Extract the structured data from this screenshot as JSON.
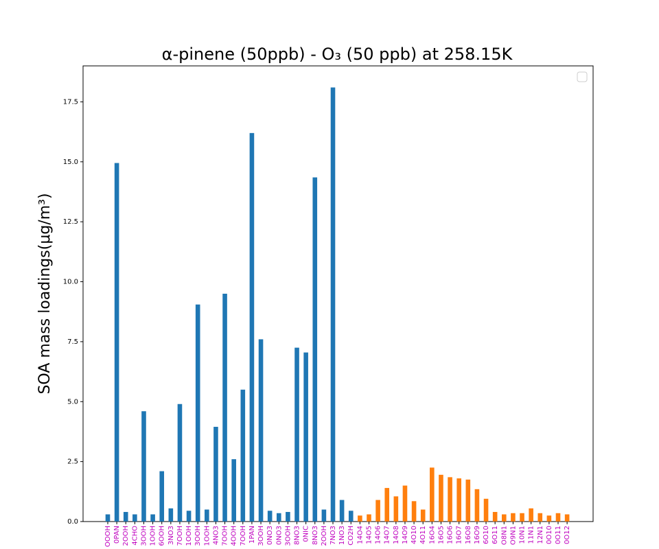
{
  "chart_data": {
    "type": "bar",
    "title": "α-pinene (50ppb) - O₃ (50 ppb) at 258.15K",
    "y_label": "SOA mass loadings(μg/m³)",
    "categories": [
      "OOOH",
      "0PAN",
      "2OOH",
      "4CHO",
      "3OOH",
      "1OOH",
      "6OOH",
      "3NO3",
      "7OOH",
      "1OOH",
      "3OOH",
      "1OOH",
      "4NO3",
      "7OOH",
      "4OOH",
      "7OOH",
      "1PAN",
      "3OOH",
      "0NO3",
      "0NO3",
      "3OOH",
      "8NO3",
      "0NIC",
      "8NO3",
      "2OOH",
      "7NO3",
      "1NO3",
      "CO2H",
      "14O4",
      "14O5",
      "14O6",
      "14O7",
      "14O8",
      "14O9",
      "4O10",
      "4O11",
      "16O4",
      "16O5",
      "16O6",
      "16O7",
      "16O8",
      "16O9",
      "6O10",
      "6O11",
      "O8N1",
      "O9N1",
      "10N1",
      "11N1",
      "12N1",
      "0O10",
      "0O11",
      "0O12"
    ],
    "series": [
      {
        "color": "#1f77b4",
        "values": [
          0.3,
          14.95,
          0.4,
          0.3,
          4.6,
          0.3,
          2.1,
          0.55,
          4.9,
          0.45,
          9.05,
          0.5,
          3.95,
          9.5,
          2.6,
          5.5,
          16.2,
          7.6,
          0.45,
          0.35,
          0.4,
          7.25,
          7.05,
          14.35,
          0.5,
          18.1,
          0.9,
          0.45,
          null,
          null,
          null,
          null,
          null,
          null,
          null,
          null,
          null,
          null,
          null,
          null,
          null,
          null,
          null,
          null,
          null,
          null,
          null,
          null,
          null,
          null,
          null,
          null
        ]
      },
      {
        "color": "#ff7f0e",
        "values": [
          null,
          null,
          null,
          null,
          null,
          null,
          null,
          null,
          null,
          null,
          null,
          null,
          null,
          null,
          null,
          null,
          null,
          null,
          null,
          null,
          null,
          null,
          null,
          null,
          null,
          null,
          null,
          null,
          0.25,
          0.3,
          0.9,
          1.4,
          1.05,
          1.5,
          0.85,
          0.5,
          2.25,
          1.95,
          1.85,
          1.8,
          1.75,
          1.35,
          0.95,
          0.4,
          0.3,
          0.35,
          0.35,
          0.55,
          0.35,
          0.25,
          0.35,
          0.3
        ]
      }
    ],
    "ylim": [
      0,
      19
    ],
    "yticks": [
      {
        "value": 0,
        "label": "0.0"
      },
      2.5,
      {
        "value": 5,
        "label": "5.0"
      },
      7.5,
      {
        "value": 10,
        "label": "10.0"
      },
      12.5,
      {
        "value": 15,
        "label": "15.0"
      },
      17.5
    ],
    "legend": "upper right"
  }
}
